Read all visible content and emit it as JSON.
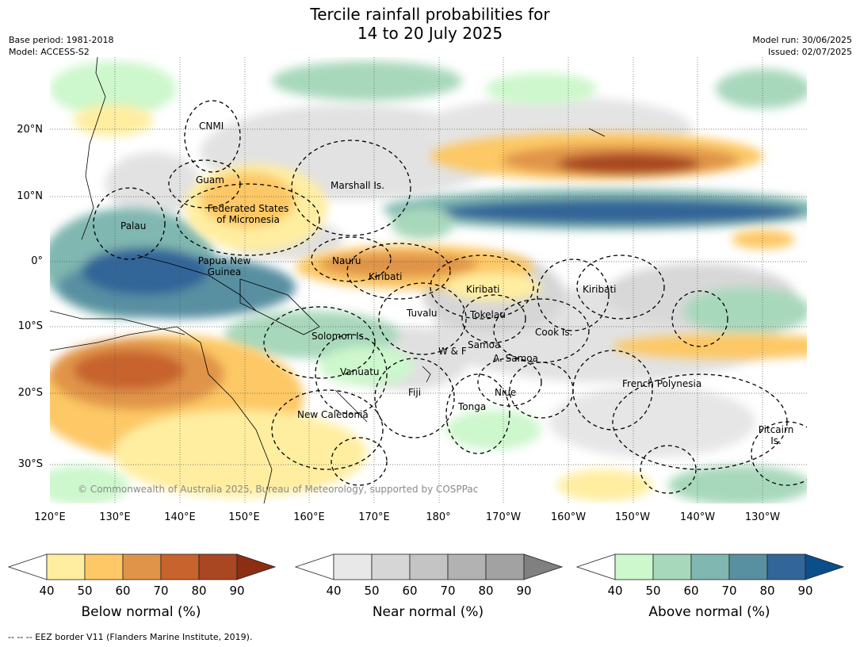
{
  "title": {
    "line1": "Tercile rainfall probabilities for",
    "line2": "14 to 20 July 2025"
  },
  "meta": {
    "base_period": "Base period: 1981-2018",
    "model": "Model: ACCESS-S2",
    "model_run": "Model run: 30/06/2025",
    "issued": "Issued: 02/07/2025"
  },
  "map": {
    "lat_labels": [
      "20°N",
      "10°N",
      "0°",
      "10°S",
      "20°S",
      "30°S"
    ],
    "lon_labels": [
      "120°E",
      "130°E",
      "140°E",
      "150°E",
      "160°E",
      "170°E",
      "180°",
      "170°W",
      "160°W",
      "150°W",
      "140°W",
      "130°W"
    ],
    "regions": {
      "cnmi": "CNMI",
      "guam": "Guam",
      "marshall": "Marshall Is.",
      "fsm1": "Federated States",
      "fsm2": "of Micronesia",
      "palau": "Palau",
      "png1": "Papua New",
      "png2": "Guinea",
      "nauru": "Nauru",
      "kiribati1": "Kiribati",
      "kiribati2": "Kiribati",
      "kiribati3": "Kiribati",
      "tuvalu": "Tuvalu",
      "tokelau": "Tokelau",
      "cook": "Cook Is.",
      "solomon": "Solomon Is.",
      "samoa": "Samoa",
      "wf": "W & F",
      "asamoa": "A. Samoa",
      "vanuatu": "Vanuatu",
      "fiji": "Fiji",
      "niue": "Niue",
      "tonga": "Tonga",
      "fp": "French Polynesia",
      "newcal": "New Caledonia",
      "pitcairn1": "Pitcairn",
      "pitcairn2": "Is."
    },
    "copyright": "© Commonwealth of Australia 2025, Bureau of Meteorology, supported by COSPPac"
  },
  "colorbars": [
    {
      "label": "Below normal (%)",
      "ticks": [
        "40",
        "50",
        "60",
        "70",
        "80",
        "90"
      ],
      "colors": [
        "#ffeea0",
        "#fdc865",
        "#e0944a",
        "#c8632e",
        "#a94722",
        "#8c2e14"
      ]
    },
    {
      "label": "Near normal (%)",
      "ticks": [
        "40",
        "50",
        "60",
        "70",
        "80",
        "90"
      ],
      "colors": [
        "#e8e8e8",
        "#d6d6d6",
        "#c4c4c4",
        "#b2b2b2",
        "#a2a2a2",
        "#808080"
      ]
    },
    {
      "label": "Above normal (%)",
      "ticks": [
        "40",
        "50",
        "60",
        "70",
        "80",
        "90"
      ],
      "colors": [
        "#cdf7cc",
        "#a8d8bc",
        "#80b7b0",
        "#5890a2",
        "#326598",
        "#0b4e8a"
      ]
    }
  ],
  "footnote": "--  --  -- EEZ border V11 (Flanders Marine Institute, 2019)."
}
